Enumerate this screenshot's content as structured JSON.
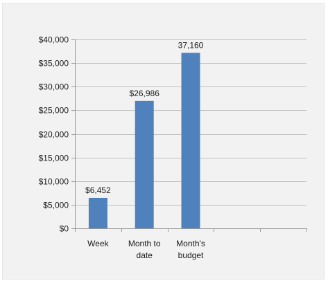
{
  "chart_data": {
    "type": "bar",
    "title": "",
    "xlabel": "",
    "ylabel": "",
    "categories": [
      [
        "Week"
      ],
      [
        "Month to",
        "date"
      ],
      [
        "Month's",
        "budget"
      ],
      [],
      []
    ],
    "values": [
      6452,
      26986,
      37160,
      null,
      null
    ],
    "data_labels": [
      "$6,452",
      "$26,986",
      "37,160",
      "",
      ""
    ],
    "ylim": [
      0,
      40000
    ],
    "yticks": [
      0,
      5000,
      10000,
      15000,
      20000,
      25000,
      30000,
      35000,
      40000
    ],
    "ytick_labels": [
      "$0",
      "$5,000",
      "$10,000",
      "$15,000",
      "$20,000",
      "$25,000",
      "$30,000",
      "$35,000",
      "$40,000"
    ],
    "grid": true,
    "legend": "none",
    "colors": {
      "bar": "#4f81bd",
      "grid": "#bfbfbf",
      "axis": "#9a9a9a",
      "background": "#f2f2f2"
    }
  }
}
